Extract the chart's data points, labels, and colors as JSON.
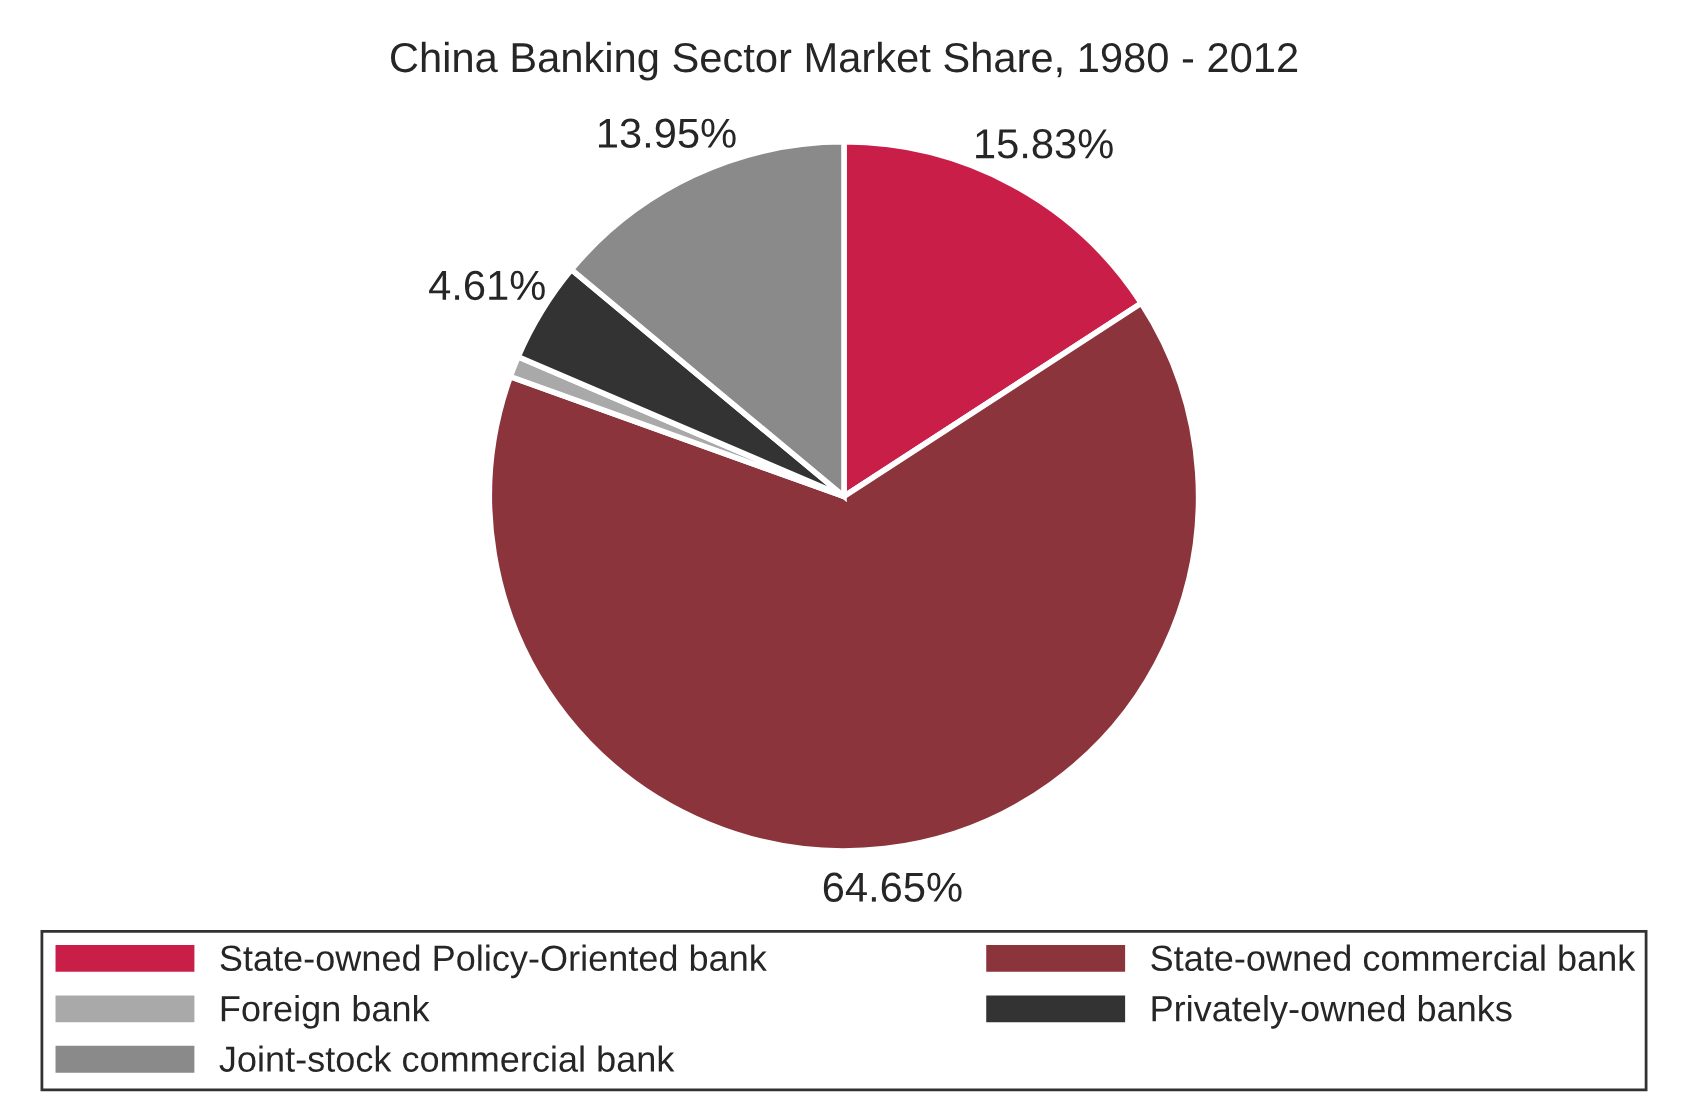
{
  "chart_data": {
    "type": "pie",
    "title": "China Banking Sector Market Share, 1980 - 2012",
    "categories": [
      "State-owned Policy-Oriented bank",
      "State-owned commercial bank",
      "Foreign bank",
      "Privately-owned banks",
      "Joint-stock commercial bank"
    ],
    "values": [
      15.83,
      64.65,
      0.96,
      4.61,
      13.95
    ],
    "value_labels": [
      "15.83%",
      "64.65%",
      null,
      "4.61%",
      "13.95%"
    ],
    "colors": [
      "#c81e48",
      "#8c343c",
      "#a9a9a9",
      "#333333",
      "#8a8a8a"
    ],
    "legend": "bottom"
  }
}
